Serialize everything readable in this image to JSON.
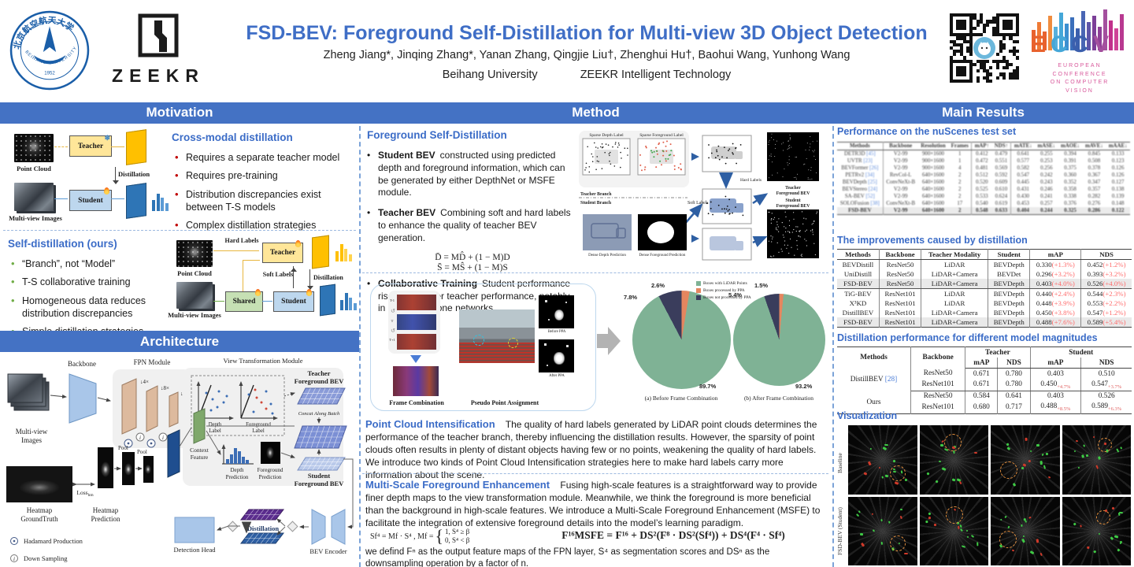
{
  "colors": {
    "accent": "#4472C4",
    "heading_blue": "#3b6cc7",
    "bullet_red": "#C00000",
    "soft_red": "#ff6b6b",
    "bullet_green": "#70AD47",
    "pie_green": "#7FB295",
    "pie_orange": "#E5865F",
    "pie_navy": "#3A3D5C"
  },
  "header": {
    "title": "FSD-BEV: Foreground Self-Distillation for Multi-view 3D Object Detection",
    "authors": "Zheng Jiang*, Jinqing Zhang*, Yanan Zhang, Qingjie Liu†, Zhenghui Hu†, Baohui Wang, Yunhong Wang",
    "affil1": "Beihang University",
    "affil2": "ZEEKR Intelligent Technology",
    "zeekr": "ZEEKR",
    "beihang_cn": "北京航空航天大学",
    "beihang_en": "BEIHANG UNIVERSITY",
    "beihang_year": "1952",
    "eccv": {
      "letters": [
        "E",
        "C",
        "C",
        "V"
      ],
      "lines": [
        "EUROPEAN",
        "CONFERENCE",
        "ON COMPUTER",
        "VISION"
      ]
    }
  },
  "bars": {
    "motivation": "Motivation",
    "method": "Method",
    "results": "Main Results",
    "architecture": "Architecture"
  },
  "motivation": {
    "cross": {
      "heading": "Cross-modal distillation",
      "bullets": [
        "Requires a separate teacher model",
        "Requires pre-training",
        "Distribution discrepancies exist between T-S models",
        "Complex distillation strategies"
      ],
      "labels": {
        "point_cloud": "Point Cloud",
        "multi_view": "Multi-view Images",
        "teacher": "Teacher",
        "student": "Student",
        "distillation": "Distillation"
      }
    },
    "self": {
      "heading": "Self-distillation (ours)",
      "bullets": [
        "“Branch”, not “Model”",
        "T-S collaborative training",
        "Homogeneous data reduces distribution discrepancies",
        "Simple distillation strategies"
      ],
      "labels": {
        "point_cloud": "Point Cloud",
        "multi_view": "Multi-view Images",
        "hard_labels": "Hard Labels",
        "soft_labels": "Soft Labels",
        "teacher": "Teacher",
        "shared": "Shared",
        "student": "Student",
        "distillation": "Distillation"
      }
    }
  },
  "architecture": {
    "backbone": "Backbone",
    "fpn": "FPN Module",
    "vtm": "View Transformation Module",
    "mv1": "Multi-view",
    "mv2": "Images",
    "d4": "↓4×",
    "d8": "↓8×",
    "d16": "↓16×",
    "pool": "Pool",
    "gt1": "Heatmap",
    "gt2": "GroundTruth",
    "loss": "Loss",
    "loss_sub": "hm",
    "hp1": "Heatmap",
    "hp2": "Prediction",
    "dl1": "Depth",
    "dl2": "Label",
    "fl1": "Foreground",
    "fl2": "Label",
    "tb1": "Teacher",
    "tb2": "Foreground BEV",
    "concat": "Concat Along Batch",
    "cf1": "Context",
    "cf2": "Feature",
    "dp1": "Depth",
    "dp2": "Prediction",
    "fp1": "Foreground",
    "fp2": "Prediction",
    "sb1": "Student",
    "sb2": "Foreground BEV",
    "det_head": "Detection Head",
    "distill": "Distillation",
    "bev_enc": "BEV Encoder",
    "leg1": "Hadamard Production",
    "leg2": "Down Sampling"
  },
  "method": {
    "fsd": {
      "heading": "Foreground Self-Distillation",
      "b1_title": "Student BEV",
      "b1_text": "constructed using predicted depth and foreground information, which can be generated by either DepthNet or MSFE module.",
      "b2_title": "Teacher BEV",
      "b2_text": "Combining soft and hard labels to enhance the quality of teacher BEV generation.",
      "eq1": "D̄ = MD̂ + (1 − M)D",
      "eq2": "S̄ = MŜ + (1 − M)S",
      "b3_title": "Collaborative Training",
      "b3_text": "Student performance rises with better teacher performance, notably in large backbone networks."
    },
    "diagram": {
      "sparse_depth": "Sparse Depth Label",
      "sparse_fg": "Sparse Foreground Label",
      "teacher_branch": "Teacher Branch",
      "student_branch": "Student Branch",
      "hard_labels": "Hard Labels",
      "soft_labels": "Soft Labels",
      "tb1": "Teacher",
      "tb2": "Foreground BEV",
      "sb1": "Student",
      "sb2": "Foreground BEV",
      "dense_depth": "Dense Depth Prediction",
      "dense_fg": "Dense Foreground Prediction"
    },
    "pci_fig": {
      "frames": [
        "T-1",
        "T",
        "T+1"
      ],
      "frame_comb": "Frame Combination",
      "ppa": "Pseudo Point Assignment",
      "before": "Before PPA",
      "after": "After PPA"
    },
    "pci": {
      "heading": "Point Cloud Intensification",
      "text": "The quality of hard labels generated by LiDAR point clouds determines the performance of the teacher branch, thereby influencing the distillation results. However, the sparsity of point clouds often results in plenty of distant objects having few or no points, weakening the quality of hard labels. We introduce two kinds of Point Cloud Intensification strategies here to make hard labels carry more information about the scene."
    },
    "msfe": {
      "heading": "Multi-Scale Foreground Enhancement",
      "text": "Fusing high-scale features is a straightforward way to provide finer depth maps to the view transformation module. Meanwhile, we think the foreground is more beneficial than the background in high-scale features. We introduce a Multi-Scale Foreground Enhancement (MSFE) to facilitate the integration of extensive foreground details into the model’s learning paradigm.",
      "eq_lhs": "Sf⁴ = Mf · S⁴ ,   Mf =",
      "case1": "1,   S⁴ ≥ β",
      "case2": "0,   S⁴ < β",
      "eq_main": "F¹⁶MSFE = F¹⁶ + DS²(F⁸ · DS²(Sf⁴)) + DS⁴(F⁴ · Sf⁴)",
      "note": "we defind Fⁿ as the output feature maps of the FPN layer, S⁴ as segmentation scores and DSⁿ as the downsampling operation by a factor of n."
    }
  },
  "chart_data": [
    {
      "type": "pie",
      "title": "(a) Before Frame Combination",
      "labels": [
        "Boxes with LiDAR Points",
        "Boxes processed by PPA",
        "Boxes not processed by PPA"
      ],
      "values": [
        89.7,
        2.6,
        7.8
      ],
      "colors": [
        "#7FB295",
        "#E5865F",
        "#3A3D5C"
      ],
      "value_labels": [
        "89.7%",
        "2.6%",
        "7.8%"
      ],
      "legend_position": "top-center"
    },
    {
      "type": "pie",
      "title": "(b) After Frame Combination",
      "labels": [
        "Boxes with LiDAR Points",
        "Boxes processed by PPA",
        "Boxes not processed by PPA"
      ],
      "values": [
        93.2,
        1.5,
        5.4
      ],
      "colors": [
        "#7FB295",
        "#E5865F",
        "#3A3D5C"
      ],
      "value_labels": [
        "93.2%",
        "1.5%",
        "5.4%"
      ],
      "legend_position": "top-center"
    }
  ],
  "results": {
    "t1": {
      "heading": "Performance on the nuScenes test set",
      "headers": [
        "Methods",
        "Backbone",
        "Resolution",
        "Frames",
        "mAP↑",
        "NDS↑",
        "mATE↓",
        "mASE↓",
        "mAOE↓",
        "mAVE↓",
        "mAAE↓"
      ],
      "rows": [
        {
          "cells": [
            {
              "t": "DETR3D",
              "ref": "[45]"
            },
            "V2-99",
            "900×1600",
            "1",
            "0.412",
            "0.479",
            "0.641",
            "0.255",
            "0.394",
            "0.845",
            "0.133"
          ]
        },
        {
          "cells": [
            {
              "t": "UVTR",
              "ref": "[23]"
            },
            "V2-99",
            "900×1600",
            "1",
            "0.472",
            "0.551",
            "0.577",
            "0.253",
            "0.391",
            "0.508",
            "0.123"
          ]
        },
        {
          "cells": [
            {
              "t": "BEVFormer",
              "ref": "[26]"
            },
            "V2-99",
            "900×1600",
            "4",
            "0.481",
            "0.569",
            "0.582",
            "0.256",
            "0.375",
            "0.378",
            "0.126"
          ]
        },
        {
          "cells": [
            {
              "t": "PETRv2",
              "ref": "[34]"
            },
            "RevCol-L",
            "640×1600",
            "2",
            "0.512",
            "0.592",
            "0.547",
            "0.242",
            "0.360",
            "0.367",
            "0.126"
          ]
        },
        {
          "cells": [
            {
              "t": "BEVDepth",
              "ref": "[25]"
            },
            "ConvNeXt-B",
            "640×1600",
            "2",
            "0.520",
            "0.609",
            "0.445",
            "0.243",
            "0.352",
            "0.347",
            "0.127"
          ]
        },
        {
          "cells": [
            {
              "t": "BEVStereo",
              "ref": "[24]"
            },
            "V2-99",
            "640×1600",
            "2",
            "0.525",
            "0.610",
            "0.431",
            "0.246",
            "0.358",
            "0.357",
            "0.138"
          ]
        },
        {
          "cells": [
            {
              "t": "SA-BEV",
              "ref": "[52]"
            },
            "V2-99",
            "640×1600",
            "2",
            "0.533",
            "0.624",
            "0.430",
            "0.241",
            "0.338",
            "0.282",
            "0.139"
          ]
        },
        {
          "cells": [
            {
              "t": "SOLOFusion",
              "ref": "[38]"
            },
            "ConvNeXt-B",
            "640×1600",
            "17",
            "0.540",
            "0.619",
            "0.453",
            "0.257",
            "0.376",
            "0.276",
            "0.148"
          ]
        },
        {
          "cells": [
            "FSD-BEV",
            "V2-99",
            "640×1600",
            "2",
            "0.548",
            "0.633",
            "0.404",
            "0.244",
            "0.325",
            "0.286",
            "0.122"
          ],
          "hl": true,
          "bold": true
        }
      ]
    },
    "t2": {
      "heading": "The improvements caused by distillation",
      "headers": [
        "Methods",
        "Backbone",
        "Teacher Modality",
        "Student",
        "mAP",
        "NDS"
      ],
      "rows": [
        {
          "cells": [
            "BEVDistill",
            "ResNet50",
            "LiDAR",
            "BEVDepth",
            {
              "t": "0.330",
              "s": "(+1.3%)"
            },
            {
              "t": "0.452",
              "s": "(+1.2%)"
            }
          ]
        },
        {
          "cells": [
            "UniDistill",
            "ResNet50",
            "LiDAR+Camera",
            "BEVDet",
            {
              "t": "0.296",
              "s": "(+3.2%)"
            },
            {
              "t": "0.393",
              "s": "(+3.2%)"
            }
          ]
        },
        {
          "cells": [
            "FSD-BEV",
            "ResNet50",
            "LiDAR+Camera",
            "BEVDepth",
            {
              "t": "0.403",
              "s": "(+4.0%)"
            },
            {
              "t": "0.526",
              "s": "(+4.0%)"
            }
          ],
          "hl": true
        },
        {
          "cells": [
            "TiG-BEV",
            "ResNet101",
            "LiDAR",
            "BEVDepth",
            {
              "t": "0.440",
              "s": "(+2.4%)"
            },
            {
              "t": "0.544",
              "s": "(+2.3%)"
            }
          ]
        },
        {
          "cells": [
            "X³KD",
            "ResNet101",
            "LiDAR",
            "BEVDepth",
            {
              "t": "0.448",
              "s": "(+3.9%)"
            },
            {
              "t": "0.553",
              "s": "(+2.2%)"
            }
          ]
        },
        {
          "cells": [
            "DistillBEV",
            "ResNet101",
            "LiDAR+Camera",
            "BEVDepth",
            {
              "t": "0.450",
              "s": "(+3.8%)"
            },
            {
              "t": "0.547",
              "s": "(+1.2%)"
            }
          ]
        },
        {
          "cells": [
            "FSD-BEV",
            "ResNet101",
            "LiDAR+Camera",
            "BEVDepth",
            {
              "t": "0.488",
              "s": "(+7.6%)"
            },
            {
              "t": "0.589",
              "s": "(+5.4%)"
            }
          ],
          "hl": true
        }
      ]
    },
    "t3": {
      "heading": "Distillation performance for different model magnitudes",
      "col_methods": "Methods",
      "col_backbone": "Backbone",
      "col_teacher": "Teacher",
      "col_student": "Student",
      "col_map": "mAP",
      "col_nds": "NDS",
      "g0_method": "DistillBEV",
      "g0_ref": "[28]",
      "g0r0": [
        "ResNet50",
        "0.671",
        "0.780",
        "0.403",
        "0.510"
      ],
      "g0r1_bk": "ResNet101",
      "g0r1_tmap": "0.671",
      "g0r1_tnds": "0.780",
      "g0r1_smap": "0.450",
      "g0r1_smap_sub": "+4.7%",
      "g0r1_snds": "0.547",
      "g0r1_snds_sub": "+3.7%",
      "g1_method": "Ours",
      "g1r0": [
        "ResNet50",
        "0.584",
        "0.641",
        "0.403",
        "0.526"
      ],
      "g1r1_bk": "ResNet101",
      "g1r1_tmap": "0.680",
      "g1r1_tnds": "0.717",
      "g1r1_smap": "0.488",
      "g1r1_smap_sub": "+8.5%",
      "g1r1_snds": "0.589",
      "g1r1_snds_sub": "+6.3%"
    },
    "viz": {
      "heading": "Visualization",
      "row_labels": [
        "Baseline",
        "FSD-BEV (Student)"
      ]
    }
  }
}
